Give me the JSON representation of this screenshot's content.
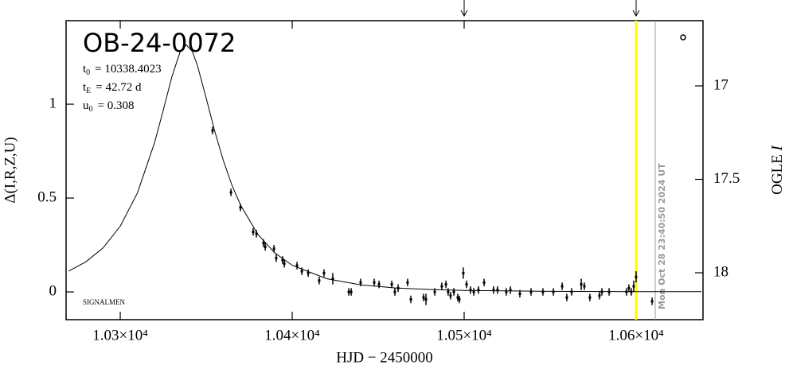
{
  "chart_data": {
    "type": "scatter",
    "title": "OB-24-0072",
    "parameters": [
      {
        "symbol": "t",
        "sub": "0",
        "text": "= 10338.4023"
      },
      {
        "symbol": "t",
        "sub": "E",
        "text": "= 42.72 d"
      },
      {
        "symbol": "u",
        "sub": "0",
        "text": "= 0.308"
      }
    ],
    "credit": "SIGNALMEN",
    "x_label": "HJD − 2450000",
    "y_label": "Δ(I,R,Z,U)",
    "y2_label": {
      "text": "OGLE ",
      "italic": "I"
    },
    "xlim": [
      10268.5,
      10638.9
    ],
    "xticks": [
      {
        "value": 10300,
        "label": "1.03×10⁴"
      },
      {
        "value": 10400,
        "label": "1.04×10⁴"
      },
      {
        "value": 10500,
        "label": "1.05×10⁴"
      },
      {
        "value": 10600,
        "label": "1.06×10⁴"
      }
    ],
    "ylim": [
      -0.148,
      1.445
    ],
    "yticks": [
      0,
      0.5,
      1
    ],
    "y2lim": [
      18.251,
      16.651
    ],
    "y2ticks": [
      17,
      17.5,
      18
    ],
    "arrows_x": [
      10500,
      10600
    ],
    "highlight_x": 10600,
    "highlight_color": "#ffff00",
    "now_x": 10611.1,
    "now_label": "Mon Oct 28 23:40:50 2024 UT",
    "now_color": "#999999",
    "model": {
      "color": "#000000",
      "x": [
        10270,
        10280,
        10290,
        10300,
        10310,
        10320,
        10325,
        10330,
        10335,
        10338.4,
        10342,
        10345,
        10350,
        10355,
        10360,
        10365,
        10370,
        10380,
        10390,
        10400,
        10420,
        10440,
        10460,
        10480,
        10500,
        10550,
        10600,
        10638
      ],
      "y": [
        0.111,
        0.16,
        0.234,
        0.35,
        0.527,
        0.796,
        0.967,
        1.145,
        1.283,
        1.316,
        1.28,
        1.203,
        1.032,
        0.855,
        0.699,
        0.568,
        0.462,
        0.307,
        0.207,
        0.142,
        0.07,
        0.037,
        0.021,
        0.013,
        0.008,
        0.003,
        0.001,
        0.001
      ]
    },
    "observations": {
      "color": "#000000",
      "x": [
        10353.7,
        10364.4,
        10369.9,
        10377.3,
        10379.2,
        10383.3,
        10384.3,
        10389.4,
        10390.7,
        10394.4,
        10395.4,
        10402.8,
        10405.6,
        10409.3,
        10415.7,
        10418.5,
        10423.6,
        10432.9,
        10434.3,
        10439.8,
        10447.7,
        10450.5,
        10457.9,
        10459.7,
        10461.6,
        10467.1,
        10469.0,
        10476.4,
        10477.8,
        10482.9,
        10487.0,
        10489.4,
        10490.7,
        10492.1,
        10494.0,
        10496.3,
        10497.2,
        10499.5,
        10501.4,
        10503.7,
        10505.6,
        10508.3,
        10511.6,
        10517.1,
        10519.4,
        10524.5,
        10526.9,
        10532.4,
        10538.9,
        10545.8,
        10551.9,
        10557.0,
        10559.7,
        10562.5,
        10568.1,
        10569.9,
        10573.1,
        10578.7,
        10580.1,
        10584.3,
        10594.4,
        10595.8,
        10597.2,
        10598.6,
        10600.0,
        10609.3
      ],
      "y": [
        0.86,
        0.53,
        0.45,
        0.32,
        0.31,
        0.26,
        0.24,
        0.23,
        0.18,
        0.17,
        0.15,
        0.14,
        0.11,
        0.1,
        0.06,
        0.1,
        0.07,
        0.0,
        0.0,
        0.05,
        0.05,
        0.04,
        0.04,
        0.0,
        0.02,
        0.05,
        -0.04,
        -0.03,
        -0.04,
        0.0,
        0.03,
        0.04,
        0.0,
        -0.02,
        0.0,
        -0.03,
        -0.04,
        0.1,
        0.04,
        0.01,
        0.0,
        0.01,
        0.05,
        0.01,
        0.01,
        0.0,
        0.01,
        -0.01,
        0.0,
        0.0,
        0.0,
        0.03,
        -0.03,
        0.0,
        0.04,
        0.03,
        -0.03,
        -0.02,
        0.0,
        0.0,
        0.0,
        0.02,
        0.0,
        0.03,
        0.08,
        -0.05
      ],
      "errors": [
        0.02,
        0.02,
        0.02,
        0.02,
        0.02,
        0.02,
        0.02,
        0.02,
        0.02,
        0.02,
        0.02,
        0.02,
        0.02,
        0.02,
        0.02,
        0.02,
        0.03,
        0.02,
        0.02,
        0.02,
        0.02,
        0.02,
        0.02,
        0.02,
        0.02,
        0.02,
        0.02,
        0.02,
        0.03,
        0.02,
        0.02,
        0.02,
        0.02,
        0.02,
        0.02,
        0.02,
        0.02,
        0.03,
        0.02,
        0.02,
        0.02,
        0.02,
        0.02,
        0.02,
        0.02,
        0.02,
        0.02,
        0.02,
        0.02,
        0.02,
        0.02,
        0.02,
        0.02,
        0.02,
        0.03,
        0.02,
        0.02,
        0.02,
        0.02,
        0.02,
        0.02,
        0.02,
        0.02,
        0.03,
        0.03,
        0.02
      ]
    }
  }
}
